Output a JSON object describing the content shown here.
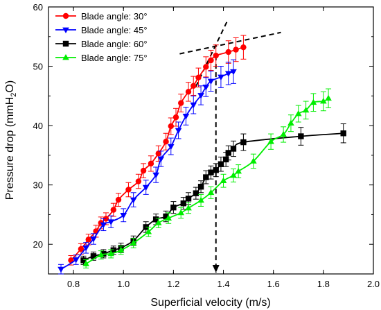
{
  "chart_data": {
    "type": "line",
    "title": "",
    "xlabel": "Superficial velocity (m/s)",
    "ylabel_main": "Pressure drop (mmH",
    "ylabel_sub": "2",
    "ylabel_end": "O)",
    "xlim": [
      0.7,
      2.0
    ],
    "ylim": [
      15,
      60
    ],
    "xticks": [
      0.8,
      1.0,
      1.2,
      1.4,
      1.6,
      1.8,
      2.0
    ],
    "xtick_labels": [
      "0.8",
      "1.0",
      "1.2",
      "1.4",
      "1.6",
      "1.8",
      "2.0"
    ],
    "yticks": [
      20,
      30,
      40,
      50,
      60
    ],
    "ytick_labels": [
      "20",
      "30",
      "40",
      "50",
      "60"
    ],
    "grid": false,
    "legend_position": "top-left",
    "series": [
      {
        "name": "Blade angle: 30°",
        "color": "#ff0000",
        "marker": "circle",
        "points": [
          [
            0.79,
            17.3
          ],
          [
            0.83,
            19.2
          ],
          [
            0.86,
            20.8
          ],
          [
            0.89,
            22.2
          ],
          [
            0.91,
            23.6
          ],
          [
            0.93,
            24.3
          ],
          [
            0.96,
            25.8
          ],
          [
            0.98,
            27.5
          ],
          [
            1.02,
            29.2
          ],
          [
            1.06,
            30.6
          ],
          [
            1.08,
            32.4
          ],
          [
            1.11,
            33.6
          ],
          [
            1.14,
            35.3
          ],
          [
            1.17,
            37.3
          ],
          [
            1.19,
            39.9
          ],
          [
            1.21,
            41.4
          ],
          [
            1.23,
            43.8
          ],
          [
            1.26,
            45.7
          ],
          [
            1.28,
            46.7
          ],
          [
            1.3,
            48.1
          ],
          [
            1.33,
            49.9
          ],
          [
            1.35,
            51.0
          ],
          [
            1.37,
            51.8
          ],
          [
            1.42,
            52.4
          ],
          [
            1.45,
            52.8
          ],
          [
            1.48,
            53.2
          ]
        ],
        "errors": [
          0.8,
          0.9,
          0.9,
          1.0,
          1.0,
          1.0,
          1.1,
          1.1,
          1.2,
          1.2,
          1.2,
          1.3,
          1.3,
          1.4,
          1.4,
          1.5,
          1.5,
          1.6,
          1.6,
          1.6,
          1.7,
          1.7,
          1.8,
          1.9,
          2.0,
          2.0
        ]
      },
      {
        "name": "Blade angle: 45°",
        "color": "#0000ff",
        "marker": "triangle-down",
        "points": [
          [
            0.75,
            15.8
          ],
          [
            0.81,
            17.4
          ],
          [
            0.85,
            19.4
          ],
          [
            0.88,
            20.9
          ],
          [
            0.92,
            23.3
          ],
          [
            0.95,
            23.8
          ],
          [
            1.0,
            24.9
          ],
          [
            1.04,
            27.5
          ],
          [
            1.09,
            29.6
          ],
          [
            1.13,
            31.7
          ],
          [
            1.15,
            34.4
          ],
          [
            1.19,
            36.5
          ],
          [
            1.22,
            39.2
          ],
          [
            1.25,
            41.6
          ],
          [
            1.28,
            43.5
          ],
          [
            1.31,
            45.1
          ],
          [
            1.33,
            46.5
          ],
          [
            1.35,
            47.5
          ],
          [
            1.39,
            48.2
          ],
          [
            1.42,
            48.8
          ],
          [
            1.44,
            49.1
          ]
        ],
        "errors": [
          0.8,
          0.8,
          0.9,
          0.9,
          1.0,
          1.0,
          1.1,
          1.2,
          1.2,
          1.3,
          1.3,
          1.4,
          1.4,
          1.5,
          1.5,
          1.6,
          1.6,
          1.7,
          1.8,
          1.9,
          2.0
        ]
      },
      {
        "name": "Blade angle: 60°",
        "color": "#000000",
        "marker": "square",
        "points": [
          [
            0.84,
            17.3
          ],
          [
            0.88,
            18.0
          ],
          [
            0.92,
            18.4
          ],
          [
            0.96,
            19.0
          ],
          [
            0.99,
            19.4
          ],
          [
            1.04,
            20.6
          ],
          [
            1.09,
            22.9
          ],
          [
            1.13,
            24.2
          ],
          [
            1.17,
            24.7
          ],
          [
            1.2,
            26.2
          ],
          [
            1.24,
            26.9
          ],
          [
            1.26,
            27.7
          ],
          [
            1.29,
            28.6
          ],
          [
            1.31,
            29.7
          ],
          [
            1.33,
            31.3
          ],
          [
            1.35,
            32.1
          ],
          [
            1.37,
            32.5
          ],
          [
            1.39,
            33.5
          ],
          [
            1.41,
            34.3
          ],
          [
            1.42,
            35.4
          ],
          [
            1.44,
            36.1
          ],
          [
            1.48,
            37.2
          ],
          [
            1.71,
            38.2
          ],
          [
            1.88,
            38.7
          ]
        ],
        "errors": [
          0.7,
          0.7,
          0.7,
          0.7,
          0.8,
          0.8,
          0.9,
          0.9,
          0.9,
          1.0,
          1.0,
          1.0,
          1.0,
          1.0,
          1.1,
          1.1,
          1.1,
          1.2,
          1.2,
          1.2,
          1.3,
          1.4,
          1.5,
          1.6
        ]
      },
      {
        "name": "Blade angle: 75°",
        "color": "#00ee00",
        "marker": "triangle-up",
        "points": [
          [
            0.85,
            16.7
          ],
          [
            0.91,
            18.2
          ],
          [
            0.95,
            18.4
          ],
          [
            0.99,
            19.0
          ],
          [
            1.04,
            20.2
          ],
          [
            1.1,
            22.1
          ],
          [
            1.14,
            23.6
          ],
          [
            1.18,
            24.4
          ],
          [
            1.23,
            25.3
          ],
          [
            1.26,
            26.1
          ],
          [
            1.31,
            27.4
          ],
          [
            1.35,
            28.7
          ],
          [
            1.4,
            30.7
          ],
          [
            1.44,
            31.6
          ],
          [
            1.46,
            32.3
          ],
          [
            1.52,
            34.0
          ],
          [
            1.59,
            37.3
          ],
          [
            1.64,
            38.5
          ],
          [
            1.67,
            40.4
          ],
          [
            1.7,
            42.0
          ],
          [
            1.73,
            42.6
          ],
          [
            1.76,
            43.9
          ],
          [
            1.8,
            44.1
          ],
          [
            1.82,
            44.6
          ]
        ],
        "errors": [
          0.7,
          0.7,
          0.7,
          0.7,
          0.8,
          0.8,
          0.8,
          0.9,
          0.9,
          0.9,
          1.0,
          1.0,
          1.1,
          1.1,
          1.1,
          1.2,
          1.3,
          1.3,
          1.4,
          1.4,
          1.5,
          1.5,
          1.6,
          1.6
        ]
      }
    ],
    "annotations": [
      {
        "type": "dashed-line",
        "from": [
          1.225,
          52.1
        ],
        "to": [
          1.63,
          55.7
        ]
      },
      {
        "type": "dashed-line",
        "from": [
          1.29,
          46.6
        ],
        "to": [
          1.415,
          57.6
        ]
      },
      {
        "type": "dashed-arrow",
        "from": [
          1.37,
          51.8
        ],
        "to": [
          1.37,
          15.0
        ]
      }
    ]
  }
}
